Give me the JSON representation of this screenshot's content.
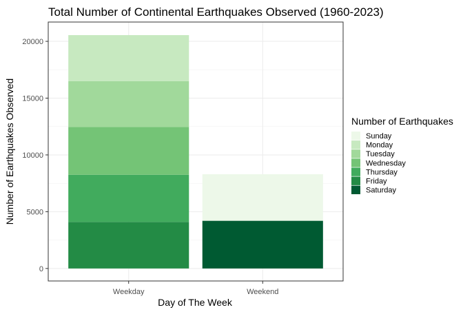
{
  "chart_data": {
    "type": "bar",
    "stacked": true,
    "title": "Total Number of Continental Earthquakes Observed (1960-2023)",
    "xlabel": "Day of The Week",
    "ylabel": "Number of Earthquakes Observed",
    "categories": [
      "Weekday",
      "Weekend"
    ],
    "ylim": [
      -1100,
      21700
    ],
    "yticks": [
      0,
      5000,
      10000,
      15000,
      20000
    ],
    "ytick_labels": [
      "0",
      "5000",
      "10000",
      "15000",
      "20000"
    ],
    "grid": true,
    "legend": {
      "title": "Number of Earthquakes",
      "position": "right",
      "entries": [
        "Sunday",
        "Monday",
        "Tuesday",
        "Wednesday",
        "Thursday",
        "Friday",
        "Saturday"
      ]
    },
    "series": [
      {
        "name": "Sunday",
        "color": "#EDF8E9",
        "values": [
          0,
          4100
        ]
      },
      {
        "name": "Monday",
        "color": "#C7E9C0",
        "values": [
          4050,
          0
        ]
      },
      {
        "name": "Tuesday",
        "color": "#A1D99B",
        "values": [
          4050,
          0
        ]
      },
      {
        "name": "Wednesday",
        "color": "#74C476",
        "values": [
          4200,
          0
        ]
      },
      {
        "name": "Thursday",
        "color": "#41AB5D",
        "values": [
          4150,
          0
        ]
      },
      {
        "name": "Friday",
        "color": "#238B45",
        "values": [
          4100,
          0
        ]
      },
      {
        "name": "Saturday",
        "color": "#005A32",
        "values": [
          0,
          4200
        ]
      }
    ]
  }
}
